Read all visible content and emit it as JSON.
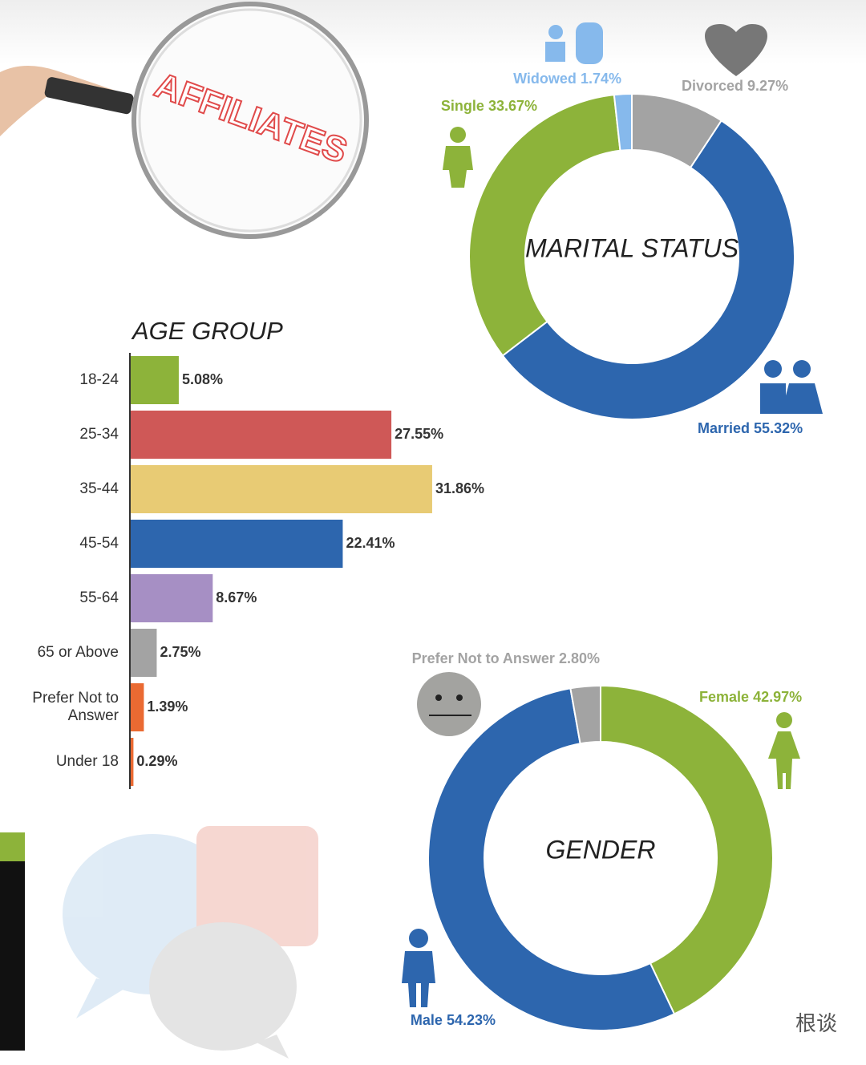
{
  "header": {
    "title": "AFFILIATES"
  },
  "watermark": "根谈",
  "chart_data": [
    {
      "type": "donut",
      "title": "MARITAL STATUS",
      "categories": [
        "Divorced",
        "Married",
        "Single",
        "Widowed"
      ],
      "values": [
        9.27,
        55.32,
        33.67,
        1.74
      ],
      "value_labels": [
        "9.27%",
        "55.32%",
        "33.67%",
        "1.74%"
      ],
      "colors": [
        "#a3a3a3",
        "#2d66ae",
        "#8db33a",
        "#86b9ec"
      ]
    },
    {
      "type": "bar",
      "title": "AGE GROUP",
      "categories": [
        "18-24",
        "25-34",
        "35-44",
        "45-54",
        "55-64",
        "65 or Above",
        "Prefer Not to Answer",
        "Under 18"
      ],
      "values": [
        5.08,
        27.55,
        31.86,
        22.41,
        8.67,
        2.75,
        1.39,
        0.29
      ],
      "value_labels": [
        "5.08%",
        "27.55%",
        "31.86%",
        "22.41%",
        "8.67%",
        "2.75%",
        "1.39%",
        "0.29%"
      ],
      "colors": [
        "#8db33a",
        "#cf5857",
        "#e8cb74",
        "#2d66ae",
        "#a68fc4",
        "#a3a3a3",
        "#ea6a32",
        "#ea6a32"
      ]
    },
    {
      "type": "donut",
      "title": "GENDER",
      "categories": [
        "Female",
        "Male",
        "Prefer Not to Answer"
      ],
      "values": [
        42.97,
        54.23,
        2.8
      ],
      "value_labels": [
        "42.97%",
        "54.23%",
        "2.80%"
      ],
      "colors": [
        "#8db33a",
        "#2d66ae",
        "#a3a3a3"
      ]
    }
  ]
}
